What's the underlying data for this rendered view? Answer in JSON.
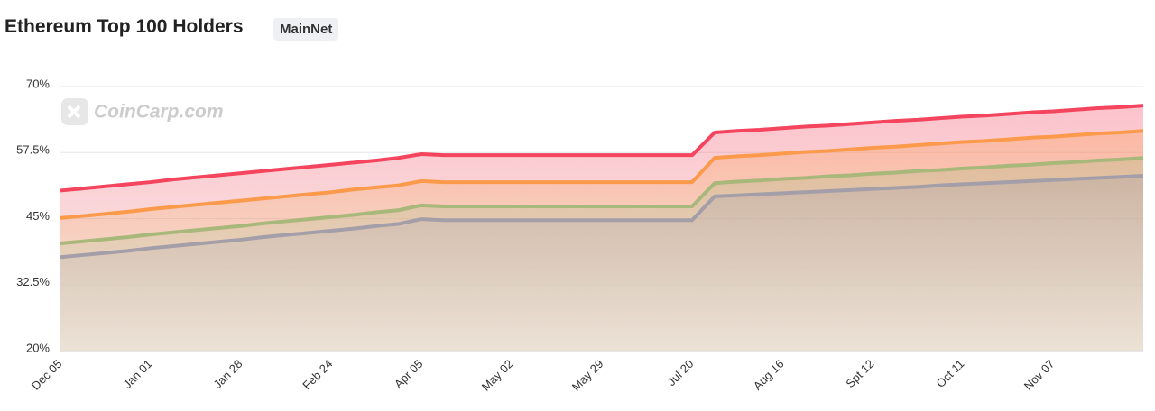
{
  "header": {
    "title": "Ethereum Top 100 Holders",
    "badge": "MainNet"
  },
  "chart_data": {
    "type": "area",
    "watermark": "CoinCarp.com",
    "categories": [
      "Dec 05",
      null,
      null,
      null,
      "Jan 01",
      null,
      null,
      null,
      "Jan 28",
      null,
      null,
      null,
      "Feb 24",
      null,
      null,
      null,
      "Apr 05",
      null,
      null,
      null,
      "May 02",
      null,
      null,
      null,
      "May 29",
      null,
      null,
      null,
      "Jul 20",
      null,
      null,
      null,
      "Aug 16",
      null,
      null,
      null,
      "Spt 12",
      null,
      null,
      null,
      "Oct 11",
      null,
      null,
      null,
      "Nov 07",
      null,
      null,
      null,
      null
    ],
    "series": [
      {
        "color": "#f5445e",
        "values": [
          50.3,
          50.7,
          51.1,
          51.5,
          51.9,
          52.4,
          52.8,
          53.2,
          53.6,
          54.0,
          54.4,
          54.8,
          55.2,
          55.6,
          56.0,
          56.5,
          57.2,
          57.0,
          57.0,
          57.0,
          57.0,
          57.0,
          57.0,
          57.0,
          57.0,
          57.0,
          57.0,
          57.0,
          57.0,
          61.3,
          61.6,
          61.8,
          62.1,
          62.4,
          62.6,
          62.9,
          63.2,
          63.5,
          63.7,
          64.0,
          64.3,
          64.5,
          64.8,
          65.1,
          65.3,
          65.6,
          65.9,
          66.1,
          66.4
        ]
      },
      {
        "color": "#fb9a4b",
        "values": [
          45.1,
          45.5,
          45.9,
          46.3,
          46.8,
          47.2,
          47.6,
          48.0,
          48.4,
          48.8,
          49.2,
          49.6,
          50.0,
          50.5,
          50.9,
          51.3,
          52.1,
          51.9,
          51.9,
          51.9,
          51.9,
          51.9,
          51.9,
          51.9,
          51.9,
          51.9,
          51.9,
          51.9,
          51.9,
          56.5,
          56.8,
          57.0,
          57.3,
          57.6,
          57.8,
          58.1,
          58.4,
          58.6,
          58.9,
          59.2,
          59.5,
          59.7,
          60.0,
          60.3,
          60.5,
          60.8,
          61.1,
          61.3,
          61.6
        ]
      },
      {
        "color": "#a8b77a",
        "values": [
          40.3,
          40.7,
          41.1,
          41.5,
          42.0,
          42.4,
          42.8,
          43.2,
          43.6,
          44.1,
          44.5,
          44.9,
          45.3,
          45.7,
          46.2,
          46.6,
          47.5,
          47.3,
          47.3,
          47.3,
          47.3,
          47.3,
          47.3,
          47.3,
          47.3,
          47.3,
          47.3,
          47.3,
          47.3,
          51.7,
          52.0,
          52.2,
          52.5,
          52.7,
          53.0,
          53.2,
          53.5,
          53.7,
          54.0,
          54.2,
          54.5,
          54.7,
          55.0,
          55.2,
          55.5,
          55.7,
          56.0,
          56.2,
          56.5
        ]
      },
      {
        "color": "#a49ea9",
        "values": [
          37.7,
          38.1,
          38.5,
          38.9,
          39.4,
          39.8,
          40.2,
          40.6,
          41.0,
          41.5,
          41.9,
          42.3,
          42.7,
          43.1,
          43.6,
          44.0,
          44.9,
          44.7,
          44.7,
          44.7,
          44.7,
          44.7,
          44.7,
          44.7,
          44.7,
          44.7,
          44.7,
          44.7,
          44.7,
          49.2,
          49.4,
          49.6,
          49.8,
          50.0,
          50.2,
          50.4,
          50.6,
          50.8,
          51.0,
          51.3,
          51.5,
          51.7,
          51.9,
          52.1,
          52.3,
          52.5,
          52.7,
          52.9,
          53.1
        ]
      }
    ],
    "ylim": [
      20,
      70
    ],
    "yticks": [
      {
        "value": 20,
        "label": "20%"
      },
      {
        "value": 32.5,
        "label": "32.5%"
      },
      {
        "value": 45,
        "label": "45%"
      },
      {
        "value": 57.5,
        "label": "57.5%"
      },
      {
        "value": 70,
        "label": "70%"
      }
    ],
    "grid": true
  }
}
